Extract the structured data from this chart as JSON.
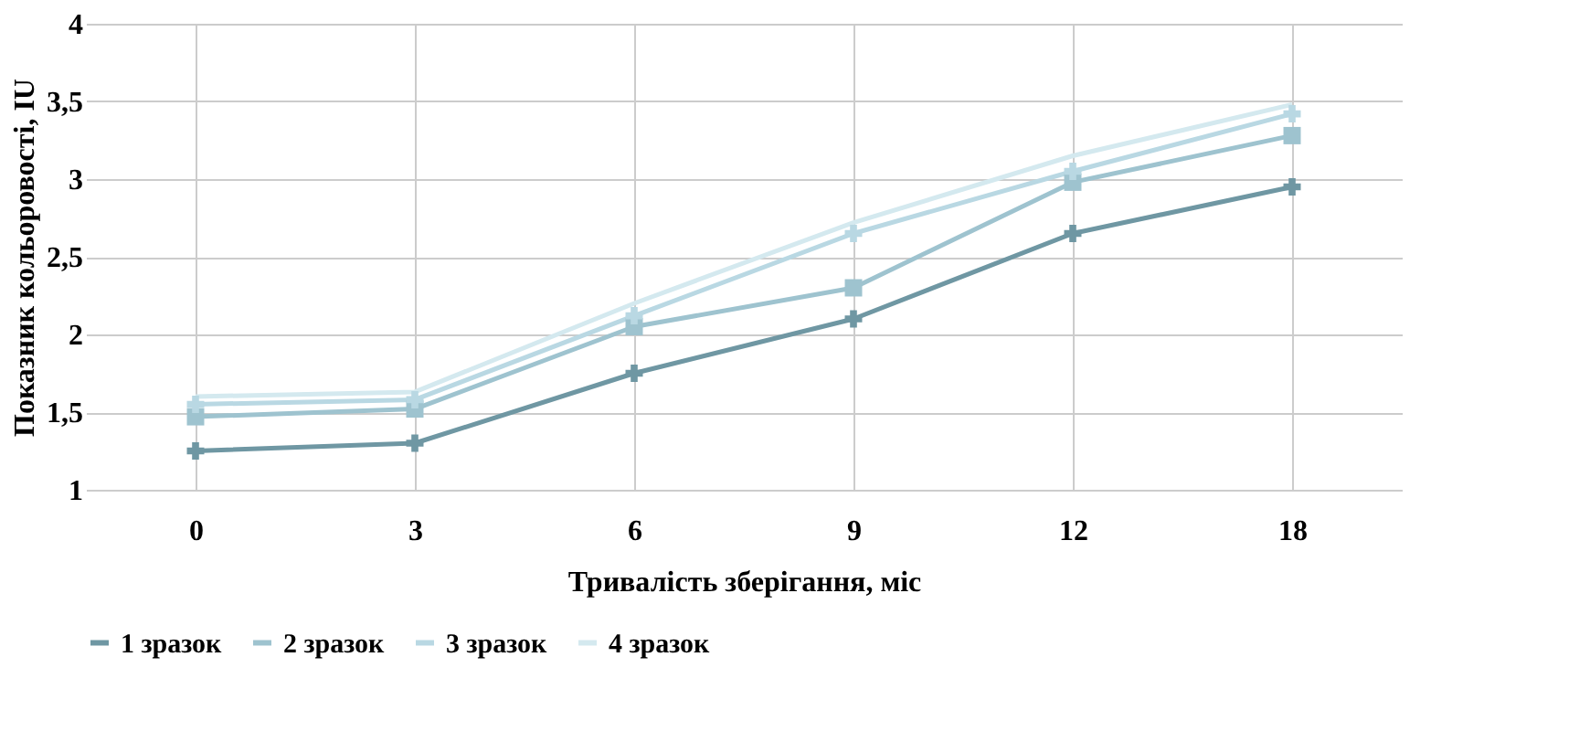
{
  "chart_data": {
    "type": "line",
    "xlabel": "Тривалість зберігання, міс",
    "ylabel": "Показник кольоровості, IU",
    "categories": [
      "0",
      "3",
      "6",
      "9",
      "12",
      "18"
    ],
    "series": [
      {
        "name": "1 зразок",
        "color": "#6f97a3",
        "marker": "cross",
        "values": [
          1.25,
          1.3,
          1.75,
          2.1,
          2.65,
          2.95
        ]
      },
      {
        "name": "2 зразок",
        "color": "#9ec3cf",
        "marker": "square",
        "values": [
          1.47,
          1.52,
          2.05,
          2.3,
          2.98,
          3.28
        ]
      },
      {
        "name": "3 зразок",
        "color": "#b9d8e3",
        "marker": "cross",
        "values": [
          1.55,
          1.58,
          2.12,
          2.65,
          3.05,
          3.42
        ]
      },
      {
        "name": "4 зразок",
        "color": "#d4e9ef",
        "marker": "none",
        "values": [
          1.6,
          1.63,
          2.2,
          2.72,
          3.15,
          3.48
        ]
      }
    ],
    "ylim": [
      1,
      4
    ],
    "yticks": [
      1,
      {
        "value": 1.5,
        "label": "1,5"
      },
      2,
      {
        "value": 2.5,
        "label": "2,5"
      },
      3,
      {
        "value": 3.5,
        "label": "3,5"
      },
      4
    ],
    "grid": true,
    "legend": "bottom"
  }
}
